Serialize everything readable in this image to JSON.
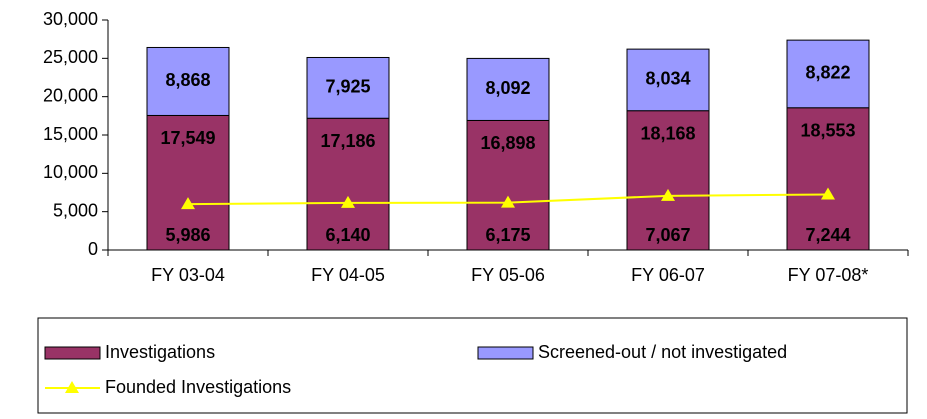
{
  "chart_data": {
    "type": "stacked_bar_line",
    "categories": [
      "FY 03-04",
      "FY 04-05",
      "FY 05-06",
      "FY 06-07",
      "FY 07-08*"
    ],
    "series": [
      {
        "name": "Investigations",
        "color": "#993366",
        "kind": "bar",
        "values": [
          17549,
          17186,
          16898,
          18168,
          18553
        ],
        "value_labels": [
          "17,549",
          "17,186",
          "16,898",
          "18,168",
          "18,553"
        ]
      },
      {
        "name": "Screened-out / not investigated",
        "color": "#9999ff",
        "kind": "bar",
        "values": [
          8868,
          7925,
          8092,
          8034,
          8822
        ],
        "value_labels": [
          "8,868",
          "7,925",
          "8,092",
          "8,034",
          "8,822"
        ]
      },
      {
        "name": "Founded Investigations",
        "color": "#ffff00",
        "kind": "line",
        "values": [
          5986,
          6140,
          6175,
          7067,
          7244
        ],
        "value_labels": [
          "5,986",
          "6,140",
          "6,175",
          "7,067",
          "7,244"
        ]
      }
    ],
    "ylim": [
      0,
      30000
    ],
    "yticks": [
      {
        "value": 0,
        "label": "0"
      },
      {
        "value": 5000,
        "label": "5,000"
      },
      {
        "value": 10000,
        "label": "10,000"
      },
      {
        "value": 15000,
        "label": "15,000"
      },
      {
        "value": 20000,
        "label": "20,000"
      },
      {
        "value": 25000,
        "label": "25,000"
      },
      {
        "value": 30000,
        "label": "30,000"
      }
    ],
    "legend": "bottom"
  }
}
